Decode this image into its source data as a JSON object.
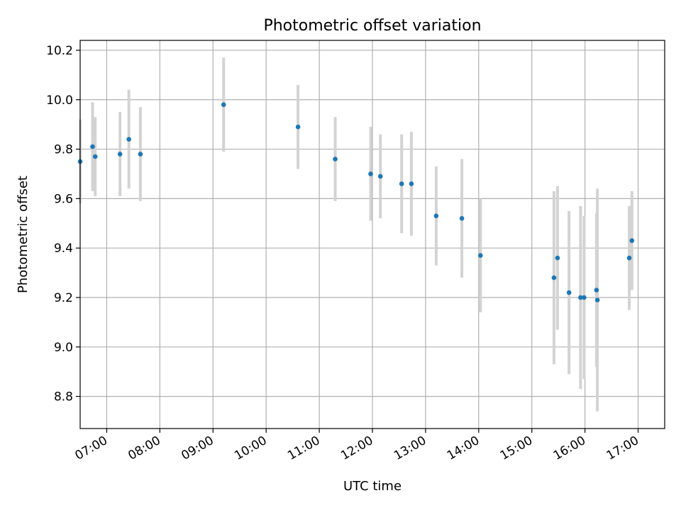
{
  "chart_data": {
    "type": "scatter",
    "title": "Photometric offset variation",
    "xlabel": "UTC time",
    "ylabel": "Photometric offset",
    "xlim_hours": [
      6.5,
      17.5
    ],
    "ylim": [
      8.67,
      10.24
    ],
    "grid": true,
    "xticks": [
      {
        "hour": 7,
        "label": "07:00"
      },
      {
        "hour": 8,
        "label": "08:00"
      },
      {
        "hour": 9,
        "label": "09:00"
      },
      {
        "hour": 10,
        "label": "10:00"
      },
      {
        "hour": 11,
        "label": "11:00"
      },
      {
        "hour": 12,
        "label": "12:00"
      },
      {
        "hour": 13,
        "label": "13:00"
      },
      {
        "hour": 14,
        "label": "14:00"
      },
      {
        "hour": 15,
        "label": "15:00"
      },
      {
        "hour": 16,
        "label": "16:00"
      },
      {
        "hour": 17,
        "label": "17:00"
      }
    ],
    "yticks": [
      {
        "value": 8.8,
        "label": "8.8"
      },
      {
        "value": 9.0,
        "label": "9.0"
      },
      {
        "value": 9.2,
        "label": "9.2"
      },
      {
        "value": 9.4,
        "label": "9.4"
      },
      {
        "value": 9.6,
        "label": "9.6"
      },
      {
        "value": 9.8,
        "label": "9.8"
      },
      {
        "value": 10.0,
        "label": "10.0"
      },
      {
        "value": 10.2,
        "label": "10.2"
      }
    ],
    "point_color": "#1f77b4",
    "errorbar_color": "#d3d3d3",
    "points": [
      {
        "time": "06:30",
        "y": 9.75,
        "yerr": 0.17
      },
      {
        "time": "06:44",
        "y": 9.81,
        "yerr": 0.18
      },
      {
        "time": "06:47",
        "y": 9.77,
        "yerr": 0.16
      },
      {
        "time": "07:15",
        "y": 9.78,
        "yerr": 0.17
      },
      {
        "time": "07:25",
        "y": 9.84,
        "yerr": 0.2
      },
      {
        "time": "07:38",
        "y": 9.78,
        "yerr": 0.19
      },
      {
        "time": "09:12",
        "y": 9.98,
        "yerr": 0.19
      },
      {
        "time": "10:36",
        "y": 9.89,
        "yerr": 0.17
      },
      {
        "time": "11:18",
        "y": 9.76,
        "yerr": 0.17
      },
      {
        "time": "11:58",
        "y": 9.7,
        "yerr": 0.19
      },
      {
        "time": "12:09",
        "y": 9.69,
        "yerr": 0.17
      },
      {
        "time": "12:33",
        "y": 9.66,
        "yerr": 0.2
      },
      {
        "time": "12:44",
        "y": 9.66,
        "yerr": 0.21
      },
      {
        "time": "13:12",
        "y": 9.53,
        "yerr": 0.2
      },
      {
        "time": "13:41",
        "y": 9.52,
        "yerr": 0.24
      },
      {
        "time": "14:02",
        "y": 9.37,
        "yerr": 0.23
      },
      {
        "time": "15:25",
        "y": 9.28,
        "yerr": 0.35
      },
      {
        "time": "15:29",
        "y": 9.36,
        "yerr": 0.29
      },
      {
        "time": "15:42",
        "y": 9.22,
        "yerr": 0.33
      },
      {
        "time": "15:55",
        "y": 9.2,
        "yerr": 0.37
      },
      {
        "time": "15:59",
        "y": 9.2,
        "yerr": 0.33
      },
      {
        "time": "16:13",
        "y": 9.23,
        "yerr": 0.31
      },
      {
        "time": "16:14",
        "y": 9.19,
        "yerr": 0.45
      },
      {
        "time": "16:50",
        "y": 9.36,
        "yerr": 0.21
      },
      {
        "time": "16:53",
        "y": 9.43,
        "yerr": 0.2
      }
    ]
  }
}
